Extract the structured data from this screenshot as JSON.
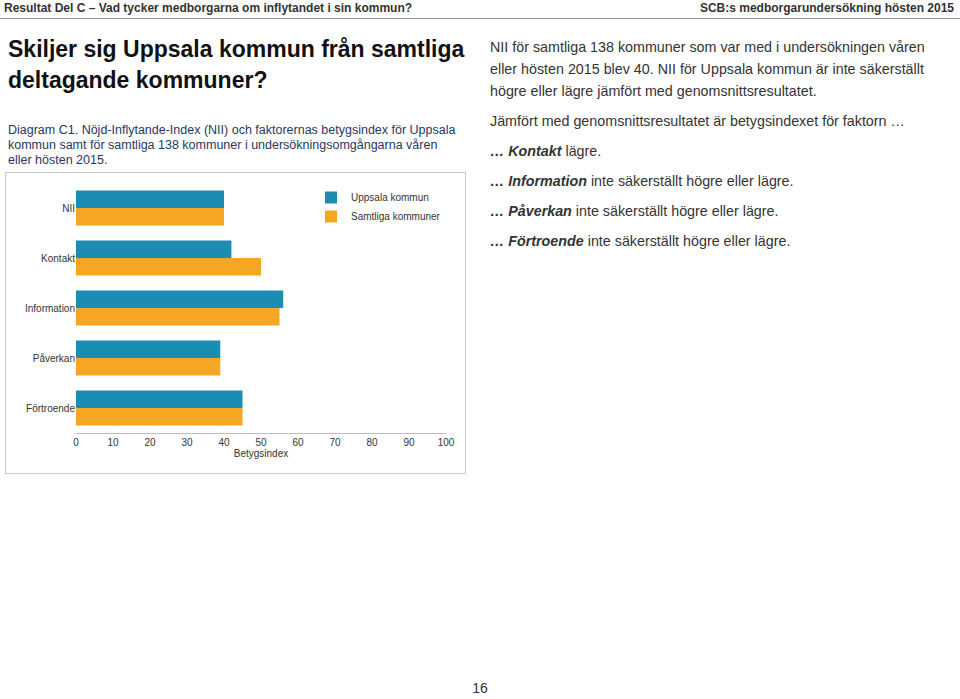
{
  "header": {
    "left": "Resultat Del C – Vad tycker medborgarna om inflytandet i sin kommun?",
    "right": "SCB:s medborgarundersökning hösten 2015"
  },
  "heading": "Skiljer sig Uppsala kommun från samtliga deltagande kommuner?",
  "chart_data": {
    "type": "bar",
    "orientation": "horizontal",
    "title": "Diagram C1. Nöjd-Inflytande-Index (NII) och faktorernas betygsindex för Uppsala kommun samt för samtliga 138 kommuner i undersökningsomgångarna våren eller hösten 2015.",
    "categories": [
      "NII",
      "Kontakt",
      "Information",
      "Påverkan",
      "Förtroende"
    ],
    "series": [
      {
        "name": "Uppsala kommun",
        "color": "#1b8db3",
        "values": [
          40,
          42,
          56,
          39,
          45
        ]
      },
      {
        "name": "Samtliga kommuner",
        "color": "#f5a623",
        "values": [
          40,
          50,
          55,
          39,
          45
        ]
      }
    ],
    "xlim": [
      0,
      100
    ],
    "xticks": [
      0,
      10,
      20,
      30,
      40,
      50,
      60,
      70,
      80,
      90,
      100
    ],
    "xlabel": "Betygsindex",
    "legend": "upper right",
    "grid": false
  },
  "text": {
    "paragraph": "NII för samtliga 138 kommuner som var med i undersökningen våren eller hösten 2015 blev 40. NII för Uppsala kommun är inte säkerställt högre eller lägre jämfört med genomsnittsresultatet.",
    "intro": "Jämfört med genomsnittsresultatet är betygsindexet för faktorn …",
    "items": [
      {
        "prefix": "…",
        "factor": "Kontakt",
        "rest": "lägre."
      },
      {
        "prefix": "…",
        "factor": "Information",
        "rest": "inte säkerställt högre eller lägre."
      },
      {
        "prefix": "…",
        "factor": "Påverkan",
        "rest": "inte säkerställt högre eller lägre."
      },
      {
        "prefix": "…",
        "factor": "Förtroende",
        "rest": "inte säkerställt högre eller lägre."
      }
    ]
  },
  "page_number": "16"
}
